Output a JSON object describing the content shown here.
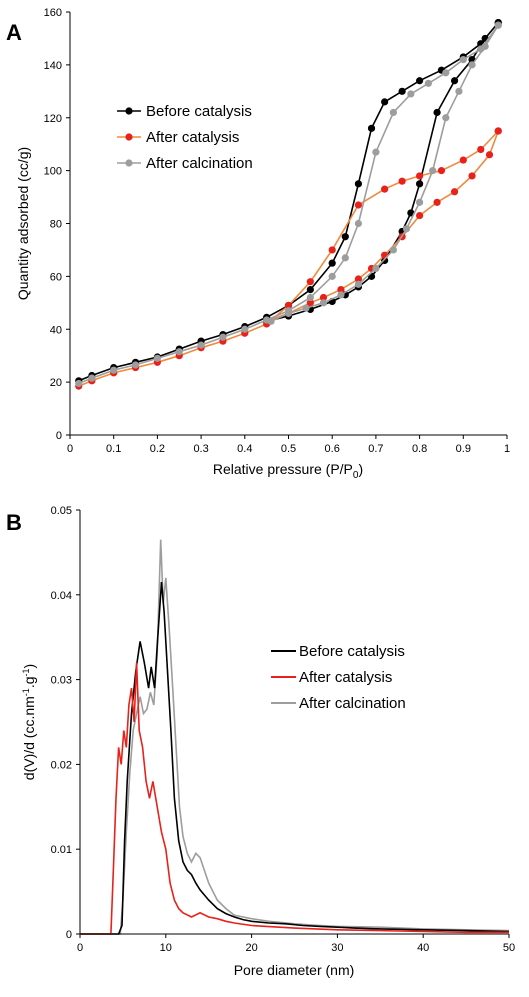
{
  "colors": {
    "before": "#000000",
    "after": "#e8211b",
    "after_line_A": "#f08a3c",
    "calc": "#9d9d9d"
  },
  "chart_data": [
    {
      "type": "line",
      "panel_label": "A",
      "xlabel": "Relative pressure (P/P",
      "xlabel_sub": "0",
      "xlabel_close": ")",
      "ylabel": "Quantity adsorbed (cc/g)",
      "xlim": [
        0,
        1
      ],
      "ylim": [
        0,
        160
      ],
      "xticks": [
        0,
        0.1,
        0.2,
        0.3,
        0.4,
        0.5,
        0.6,
        0.7,
        0.8,
        0.9,
        1
      ],
      "xtick_labels": [
        "0",
        "0.1",
        "0.2",
        "0.3",
        "0.4",
        "0.5",
        "0.6",
        "0.7",
        "0.8",
        "0.9",
        "1"
      ],
      "yticks": [
        0,
        20,
        40,
        60,
        80,
        100,
        120,
        140,
        160
      ],
      "ytick_labels": [
        "0",
        "20",
        "40",
        "60",
        "80",
        "100",
        "120",
        "140",
        "160"
      ],
      "grid": false,
      "legend_position": "upper-left",
      "series": [
        {
          "name": "Before catalysis",
          "x": [
            0.02,
            0.05,
            0.1,
            0.15,
            0.2,
            0.25,
            0.3,
            0.35,
            0.4,
            0.45,
            0.5,
            0.55,
            0.6,
            0.63,
            0.66,
            0.69,
            0.72,
            0.76,
            0.8,
            0.85,
            0.9,
            0.94,
            0.98,
            0.98,
            0.95,
            0.92,
            0.88,
            0.84,
            0.8,
            0.78,
            0.76,
            0.72,
            0.69,
            0.66,
            0.63,
            0.6,
            0.55,
            0.5,
            0.45
          ],
          "y": [
            20.5,
            22.5,
            25.5,
            27.5,
            29.5,
            32.5,
            35.5,
            38,
            41,
            44.5,
            49,
            55,
            65,
            75,
            95,
            116,
            126,
            130,
            134,
            138,
            143,
            148,
            156,
            156,
            150,
            142,
            134,
            122,
            95,
            84,
            77,
            66,
            60,
            56,
            53,
            50.5,
            47.5,
            45,
            43
          ]
        },
        {
          "name": "After catalysis",
          "x": [
            0.02,
            0.05,
            0.1,
            0.15,
            0.2,
            0.25,
            0.3,
            0.35,
            0.4,
            0.45,
            0.5,
            0.55,
            0.6,
            0.66,
            0.72,
            0.76,
            0.8,
            0.85,
            0.9,
            0.94,
            0.98,
            0.98,
            0.96,
            0.92,
            0.88,
            0.84,
            0.8,
            0.76,
            0.72,
            0.69,
            0.66,
            0.62,
            0.58,
            0.55,
            0.5,
            0.45
          ],
          "y": [
            18.5,
            20.5,
            23.5,
            25.5,
            27.5,
            30,
            33,
            35.5,
            38.5,
            42,
            49,
            58,
            70,
            87,
            93,
            96,
            98,
            100,
            104,
            108,
            115,
            115,
            106,
            98,
            92,
            88,
            83,
            75,
            68,
            63,
            59,
            55,
            52,
            50,
            46,
            43
          ]
        },
        {
          "name": "After calcination",
          "x": [
            0.02,
            0.05,
            0.1,
            0.15,
            0.2,
            0.25,
            0.3,
            0.35,
            0.4,
            0.45,
            0.5,
            0.55,
            0.6,
            0.63,
            0.66,
            0.7,
            0.74,
            0.78,
            0.82,
            0.86,
            0.9,
            0.94,
            0.98,
            0.98,
            0.95,
            0.92,
            0.89,
            0.86,
            0.83,
            0.8,
            0.77,
            0.74,
            0.7,
            0.66,
            0.62,
            0.58,
            0.54,
            0.5,
            0.46
          ],
          "y": [
            19.5,
            21.5,
            24.5,
            26.5,
            29,
            31.5,
            34,
            37,
            40,
            43.5,
            47,
            52,
            60,
            67,
            80,
            107,
            122,
            129,
            133,
            137,
            142,
            146,
            155,
            155,
            147,
            140,
            130,
            120,
            100,
            88,
            78,
            70,
            63,
            57,
            53,
            50,
            48,
            46,
            43
          ]
        }
      ]
    },
    {
      "type": "line",
      "panel_label": "B",
      "xlabel": "Pore diameter (nm)",
      "ylabel": "d(V)/d (cc.nm",
      "ylabel_sup1": "-1",
      "ylabel_mid": ".g",
      "ylabel_sup2": "-1",
      "ylabel_close": ")",
      "xlim": [
        0,
        50
      ],
      "ylim": [
        0,
        0.05
      ],
      "xticks": [
        0,
        10,
        20,
        30,
        40,
        50
      ],
      "xtick_labels": [
        "0",
        "10",
        "20",
        "30",
        "40",
        "50"
      ],
      "yticks": [
        0,
        0.01,
        0.02,
        0.03,
        0.04,
        0.05
      ],
      "ytick_labels": [
        "0",
        "0.01",
        "0.02",
        "0.03",
        "0.04",
        "0.05"
      ],
      "grid": false,
      "legend_position": "right",
      "series": [
        {
          "name": "Before catalysis",
          "x": [
            0,
            4.5,
            4.9,
            5.2,
            5.5,
            6.0,
            6.5,
            7.0,
            7.5,
            8.0,
            8.3,
            8.7,
            9.0,
            9.5,
            9.8,
            10.2,
            10.6,
            11.0,
            11.5,
            12.0,
            12.5,
            13.0,
            13.5,
            14.0,
            15.0,
            16.0,
            17.0,
            18.0,
            19.0,
            20,
            22,
            24,
            26,
            28,
            30,
            32,
            35,
            40,
            45,
            50
          ],
          "y": [
            0,
            0,
            0.001,
            0.011,
            0.018,
            0.026,
            0.031,
            0.0345,
            0.032,
            0.029,
            0.0315,
            0.029,
            0.034,
            0.0415,
            0.038,
            0.031,
            0.024,
            0.016,
            0.011,
            0.0085,
            0.0075,
            0.007,
            0.006,
            0.0052,
            0.004,
            0.003,
            0.0024,
            0.002,
            0.0017,
            0.0015,
            0.0013,
            0.0012,
            0.001,
            0.0009,
            0.0008,
            0.0007,
            0.0006,
            0.0005,
            0.0004,
            0.0003
          ]
        },
        {
          "name": "After catalysis",
          "x": [
            0,
            3.6,
            3.9,
            4.2,
            4.5,
            4.8,
            5.1,
            5.4,
            5.7,
            6.0,
            6.3,
            6.6,
            6.9,
            7.3,
            7.7,
            8.1,
            8.5,
            9.0,
            9.5,
            10.0,
            10.5,
            11.0,
            11.5,
            12.0,
            13.0,
            14.0,
            15.0,
            16.0,
            17.0,
            18.0,
            20,
            25,
            30,
            35,
            40,
            45,
            50
          ],
          "y": [
            0,
            0,
            0.008,
            0.016,
            0.022,
            0.02,
            0.024,
            0.022,
            0.027,
            0.029,
            0.025,
            0.032,
            0.024,
            0.022,
            0.018,
            0.016,
            0.018,
            0.015,
            0.012,
            0.01,
            0.006,
            0.004,
            0.003,
            0.0025,
            0.002,
            0.0025,
            0.002,
            0.0018,
            0.0015,
            0.0013,
            0.001,
            0.0007,
            0.0005,
            0.0004,
            0.0003,
            0.0002,
            0.0002
          ]
        },
        {
          "name": "After calcination",
          "x": [
            0,
            4.7,
            5.0,
            5.4,
            5.8,
            6.2,
            6.6,
            7.0,
            7.4,
            7.8,
            8.2,
            8.6,
            9.0,
            9.4,
            9.7,
            10.0,
            10.4,
            10.8,
            11.2,
            11.6,
            12.0,
            12.5,
            13.0,
            13.5,
            14.0,
            14.5,
            15.0,
            16.0,
            17.0,
            18.0,
            20,
            22,
            25,
            28,
            30,
            35,
            40,
            45,
            50
          ],
          "y": [
            0,
            0,
            0.004,
            0.012,
            0.019,
            0.024,
            0.026,
            0.028,
            0.026,
            0.0265,
            0.0285,
            0.027,
            0.033,
            0.0465,
            0.039,
            0.042,
            0.036,
            0.029,
            0.022,
            0.015,
            0.0115,
            0.0095,
            0.0085,
            0.0095,
            0.009,
            0.0075,
            0.006,
            0.004,
            0.003,
            0.0022,
            0.0018,
            0.0015,
            0.0012,
            0.001,
            0.0009,
            0.0008,
            0.0006,
            0.0005,
            0.0004
          ]
        }
      ]
    }
  ]
}
